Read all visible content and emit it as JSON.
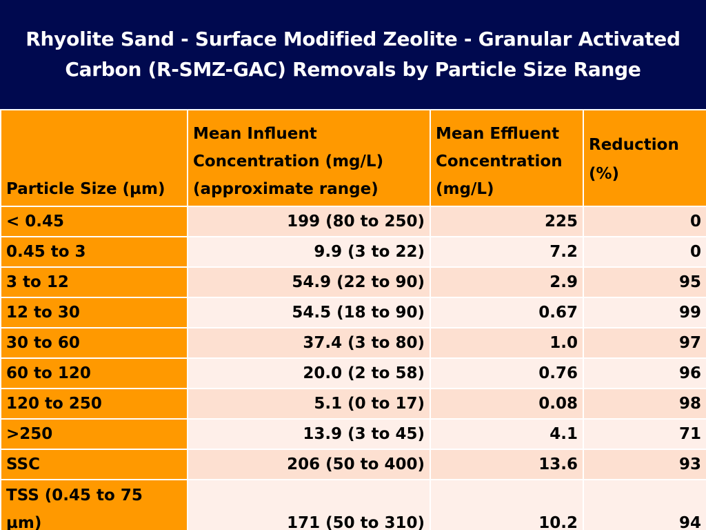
{
  "title": "Rhyolite Sand - Surface Modified Zeolite - Granular Activated Carbon (R-SMZ-GAC) Removals by Particle Size Range",
  "colors": {
    "title_background": "#00094f",
    "title_text": "#ffffff",
    "header_background": "#ff9900",
    "row_dark": "#fde0d1",
    "row_light": "#feefe9"
  },
  "table": {
    "headers": [
      "Particle Size (µm)",
      "Mean Influent Concentration (mg/L) (approximate range)",
      "Mean Effluent Concentration (mg/L)",
      "Reduction (%)"
    ],
    "rows": [
      [
        "< 0.45",
        "199 (80 to 250)",
        "225",
        "0"
      ],
      [
        "0.45 to 3",
        "9.9 (3 to 22)",
        "7.2",
        "0"
      ],
      [
        "3 to 12",
        "54.9 (22 to 90)",
        "2.9",
        "95"
      ],
      [
        "12 to 30",
        "54.5 (18 to 90)",
        "0.67",
        "99"
      ],
      [
        "30 to 60",
        "37.4 (3 to 80)",
        "1.0",
        "97"
      ],
      [
        "60 to 120",
        "20.0 (2 to 58)",
        "0.76",
        "96"
      ],
      [
        "120 to 250",
        "5.1 (0 to 17)",
        "0.08",
        "98"
      ],
      [
        ">250",
        "13.9 (3 to 45)",
        "4.1",
        "71"
      ],
      [
        "SSC",
        "206 (50 to 400)",
        "13.6",
        "93"
      ],
      [
        "TSS (0.45 to 75 µm)",
        "171 (50 to 310)",
        "10.2",
        "94"
      ]
    ]
  }
}
